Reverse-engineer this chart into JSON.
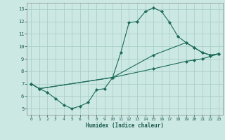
{
  "xlabel": "Humidex (Indice chaleur)",
  "bg_color": "#cce8e2",
  "grid_color": "#aacfc8",
  "line_color": "#1a6b5a",
  "xlim": [
    -0.5,
    23.5
  ],
  "ylim": [
    4.5,
    13.5
  ],
  "xticks": [
    0,
    1,
    2,
    3,
    4,
    5,
    6,
    7,
    8,
    9,
    10,
    11,
    12,
    13,
    14,
    15,
    16,
    17,
    18,
    19,
    20,
    21,
    22,
    23
  ],
  "yticks": [
    5,
    6,
    7,
    8,
    9,
    10,
    11,
    12,
    13
  ],
  "series1_x": [
    0,
    1,
    2,
    3,
    4,
    5,
    6,
    7,
    8,
    9,
    10,
    11,
    12,
    13,
    14,
    15,
    16,
    17,
    18,
    19,
    20,
    21,
    22,
    23
  ],
  "series1_y": [
    7.0,
    6.6,
    6.3,
    5.8,
    5.3,
    5.0,
    5.2,
    5.5,
    6.5,
    6.6,
    7.5,
    9.5,
    11.9,
    12.0,
    12.8,
    13.1,
    12.8,
    11.9,
    10.8,
    10.3,
    9.9,
    9.5,
    9.3,
    9.4
  ],
  "series2_x": [
    0,
    1,
    10,
    15,
    19,
    20,
    21,
    22,
    23
  ],
  "series2_y": [
    7.0,
    6.6,
    7.5,
    9.3,
    10.3,
    9.9,
    9.5,
    9.3,
    9.4
  ],
  "series3_x": [
    0,
    1,
    10,
    15,
    19,
    20,
    21,
    22,
    23
  ],
  "series3_y": [
    7.0,
    6.6,
    7.5,
    8.2,
    8.8,
    8.9,
    9.0,
    9.2,
    9.4
  ]
}
